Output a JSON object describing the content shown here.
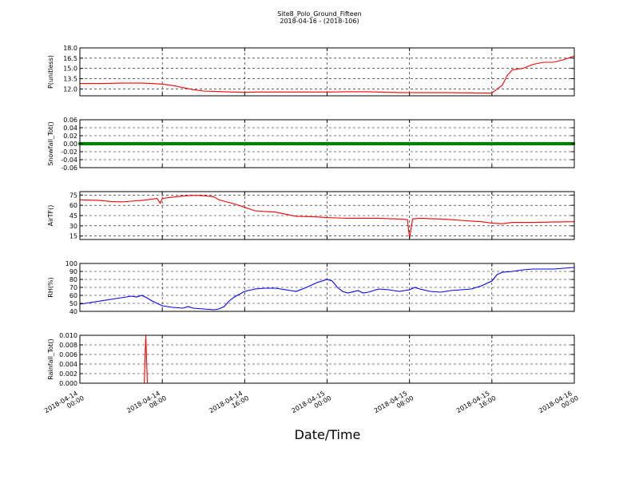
{
  "figure": {
    "title_line1": "Site8_Polo_Ground_Fifteen",
    "title_line2": "2018-04-16 - (2018-106)",
    "xlabel": "Date/Time"
  },
  "chart_data": [
    {
      "type": "line",
      "ylabel": "P(unitless)",
      "ylim": [
        11.0,
        18.0
      ],
      "yticks": [
        12.0,
        13.5,
        15.0,
        16.5,
        18.0
      ],
      "ytick_labels": [
        "12.0",
        "13.5",
        "15.0",
        "16.5",
        "18.0"
      ],
      "xlim_hours": [
        0,
        48
      ],
      "grid": true,
      "series": [
        {
          "color": "#ff0000",
          "style": "line",
          "points": [
            [
              0,
              12.8
            ],
            [
              2,
              12.8
            ],
            [
              4,
              12.85
            ],
            [
              6,
              12.85
            ],
            [
              7,
              12.8
            ],
            [
              8,
              12.7
            ],
            [
              9,
              12.5
            ],
            [
              10,
              12.2
            ],
            [
              11,
              11.9
            ],
            [
              12,
              11.7
            ],
            [
              13,
              11.65
            ],
            [
              14,
              11.6
            ],
            [
              15,
              11.55
            ],
            [
              16,
              11.5
            ],
            [
              17,
              11.55
            ],
            [
              18,
              11.55
            ],
            [
              20,
              11.55
            ],
            [
              22,
              11.55
            ],
            [
              24,
              11.55
            ],
            [
              26,
              11.6
            ],
            [
              28,
              11.6
            ],
            [
              30,
              11.5
            ],
            [
              32,
              11.45
            ],
            [
              34,
              11.45
            ],
            [
              36,
              11.45
            ],
            [
              39,
              11.4
            ],
            [
              40,
              11.4
            ],
            [
              40.5,
              12.0
            ],
            [
              41,
              12.5
            ],
            [
              41.5,
              14.0
            ],
            [
              42,
              14.8
            ],
            [
              43,
              15.0
            ],
            [
              44,
              15.6
            ],
            [
              45,
              15.9
            ],
            [
              46,
              15.9
            ],
            [
              47,
              16.3
            ],
            [
              48,
              16.8
            ]
          ]
        }
      ]
    },
    {
      "type": "line",
      "ylabel": "Snowfall_Tot()",
      "ylim": [
        -0.06,
        0.06
      ],
      "yticks": [
        -0.06,
        -0.04,
        -0.02,
        0.0,
        0.02,
        0.04,
        0.06
      ],
      "ytick_labels": [
        "-0.06",
        "-0.04",
        "-0.02",
        "0.00",
        "0.02",
        "0.04",
        "0.06"
      ],
      "xlim_hours": [
        0,
        48
      ],
      "grid": true,
      "series": [
        {
          "color": "#008000",
          "style": "markers",
          "points": [
            [
              0,
              0.0
            ],
            [
              48,
              0.0
            ]
          ]
        }
      ]
    },
    {
      "type": "line",
      "ylabel": "AirTF()",
      "ylim": [
        10,
        80
      ],
      "yticks": [
        15,
        30,
        45,
        60,
        75
      ],
      "ytick_labels": [
        "15",
        "30",
        "45",
        "60",
        "75"
      ],
      "xlim_hours": [
        0,
        48
      ],
      "grid": true,
      "series": [
        {
          "color": "#ff0000",
          "style": "line",
          "points": [
            [
              0,
              68
            ],
            [
              2,
              67
            ],
            [
              3,
              65.5
            ],
            [
              4,
              65
            ],
            [
              5,
              66
            ],
            [
              6,
              67
            ],
            [
              7,
              69
            ],
            [
              7.5,
              70
            ],
            [
              7.8,
              63
            ],
            [
              8,
              70
            ],
            [
              9,
              72
            ],
            [
              10,
              73.5
            ],
            [
              11,
              74.5
            ],
            [
              12,
              74
            ],
            [
              13,
              72.5
            ],
            [
              13.5,
              68
            ],
            [
              14,
              66
            ],
            [
              15,
              62
            ],
            [
              16,
              57
            ],
            [
              17,
              52
            ],
            [
              18,
              51
            ],
            [
              19,
              50
            ],
            [
              20,
              47
            ],
            [
              21,
              44
            ],
            [
              22,
              43.5
            ],
            [
              23,
              43
            ],
            [
              24,
              42
            ],
            [
              25,
              41.5
            ],
            [
              26,
              41
            ],
            [
              27,
              41
            ],
            [
              28,
              41
            ],
            [
              29,
              41
            ],
            [
              30,
              40.5
            ],
            [
              31,
              40
            ],
            [
              31.8,
              39
            ],
            [
              32,
              12
            ],
            [
              32.3,
              40
            ],
            [
              33,
              41
            ],
            [
              34,
              40.5
            ],
            [
              35,
              40
            ],
            [
              36,
              39
            ],
            [
              37,
              38
            ],
            [
              38,
              37
            ],
            [
              38.5,
              36.5
            ],
            [
              39,
              36
            ],
            [
              39.5,
              35
            ],
            [
              40,
              34
            ],
            [
              41,
              33
            ],
            [
              42,
              35
            ],
            [
              44,
              35
            ],
            [
              46,
              35.5
            ],
            [
              48,
              36
            ]
          ]
        }
      ]
    },
    {
      "type": "line",
      "ylabel": "RH(%)",
      "ylim": [
        40,
        100
      ],
      "yticks": [
        40,
        50,
        60,
        70,
        80,
        90,
        100
      ],
      "ytick_labels": [
        "40",
        "50",
        "60",
        "70",
        "80",
        "90",
        "100"
      ],
      "xlim_hours": [
        0,
        48
      ],
      "grid": true,
      "series": [
        {
          "color": "#0000ff",
          "style": "line",
          "points": [
            [
              0,
              49
            ],
            [
              1,
              51
            ],
            [
              2,
              53
            ],
            [
              3,
              55
            ],
            [
              4,
              57
            ],
            [
              5,
              59
            ],
            [
              5.5,
              58
            ],
            [
              6,
              60
            ],
            [
              6.5,
              57
            ],
            [
              7,
              53
            ],
            [
              7.5,
              50
            ],
            [
              8,
              47
            ],
            [
              9,
              45
            ],
            [
              10,
              44
            ],
            [
              10.5,
              46
            ],
            [
              11,
              44
            ],
            [
              12,
              43
            ],
            [
              13,
              42
            ],
            [
              13.5,
              43
            ],
            [
              14,
              46
            ],
            [
              14.5,
              53
            ],
            [
              15,
              58
            ],
            [
              16,
              65
            ],
            [
              17,
              68
            ],
            [
              18,
              69
            ],
            [
              19,
              69
            ],
            [
              20,
              67
            ],
            [
              21,
              65
            ],
            [
              22,
              70
            ],
            [
              23,
              76
            ],
            [
              24,
              80
            ],
            [
              24.5,
              78
            ],
            [
              25,
              70
            ],
            [
              25.5,
              65
            ],
            [
              26,
              63
            ],
            [
              27,
              66
            ],
            [
              27.5,
              63
            ],
            [
              28,
              64
            ],
            [
              29,
              68
            ],
            [
              30,
              67
            ],
            [
              31,
              65
            ],
            [
              32,
              67
            ],
            [
              32.5,
              70
            ],
            [
              33,
              68
            ],
            [
              34,
              65
            ],
            [
              35,
              64
            ],
            [
              36,
              66
            ],
            [
              37,
              67
            ],
            [
              38,
              68
            ],
            [
              39,
              72
            ],
            [
              40,
              78
            ],
            [
              40.5,
              86
            ],
            [
              41,
              89
            ],
            [
              42,
              90
            ],
            [
              43,
              92
            ],
            [
              44,
              93
            ],
            [
              45,
              93
            ],
            [
              46,
              93
            ],
            [
              47,
              94
            ],
            [
              48,
              95
            ]
          ]
        }
      ]
    },
    {
      "type": "line",
      "ylabel": "Rainfall_Tot()",
      "ylim": [
        0.0,
        0.01
      ],
      "yticks": [
        0.0,
        0.002,
        0.004,
        0.006,
        0.008,
        0.01
      ],
      "ytick_labels": [
        "0.000",
        "0.002",
        "0.004",
        "0.006",
        "0.008",
        "0.010"
      ],
      "xlim_hours": [
        0,
        48
      ],
      "grid": true,
      "series": [
        {
          "color": "#ff0000",
          "style": "line",
          "points": [
            [
              0,
              0.0
            ],
            [
              6,
              0.0
            ],
            [
              6.25,
              0.0
            ],
            [
              6.4,
              0.01
            ],
            [
              6.55,
              0.0
            ],
            [
              7,
              0.0
            ],
            [
              48,
              0.0
            ]
          ]
        }
      ]
    }
  ],
  "x_axis": {
    "tick_hours": [
      0,
      8,
      16,
      24,
      32,
      40,
      48
    ],
    "tick_labels": [
      [
        "2018-04-14",
        "00:00"
      ],
      [
        "2018-04-14",
        "08:00"
      ],
      [
        "2018-04-14",
        "16:00"
      ],
      [
        "2018-04-15",
        "00:00"
      ],
      [
        "2018-04-15",
        "08:00"
      ],
      [
        "2018-04-15",
        "16:00"
      ],
      [
        "2018-04-16",
        "00:00"
      ]
    ]
  }
}
